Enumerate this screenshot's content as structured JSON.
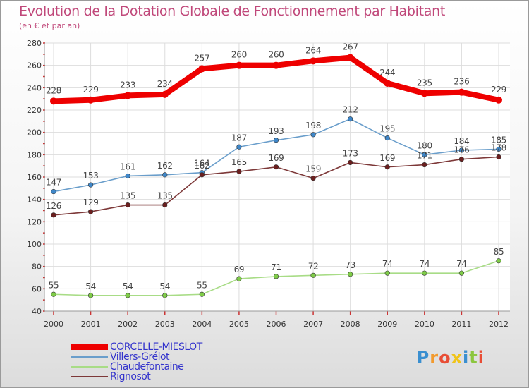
{
  "title": "Evolution de la Dotation Globale de Fonctionnement par Habitant",
  "subtitle": "(en € et par an)",
  "logo": {
    "text": "Proxiti",
    "letters": [
      {
        "ch": "P",
        "color": "#3a8fd0"
      },
      {
        "ch": "r",
        "color": "#f29a2e"
      },
      {
        "ch": "o",
        "color": "#e84d35"
      },
      {
        "ch": "x",
        "color": "#f0c419"
      },
      {
        "ch": "i",
        "color": "#3a8fd0"
      },
      {
        "ch": "t",
        "color": "#8cc63f"
      },
      {
        "ch": "i",
        "color": "#e84d35"
      }
    ]
  },
  "chart_data": {
    "type": "line",
    "title": "Evolution de la Dotation Globale de Fonctionnement par Habitant",
    "subtitle": "(en € et par an)",
    "xlabel": "",
    "ylabel": "",
    "x": [
      2000,
      2001,
      2002,
      2003,
      2004,
      2005,
      2006,
      2007,
      2008,
      2009,
      2010,
      2011,
      2012
    ],
    "ylim": [
      40,
      280
    ],
    "yticks": [
      40,
      60,
      80,
      100,
      120,
      140,
      160,
      180,
      200,
      220,
      240,
      260,
      280
    ],
    "grid": true,
    "legend_position": "bottom-left",
    "series": [
      {
        "name": "CORCELLE-MIESLOT",
        "color": "#ee0000",
        "emphasis": true,
        "values": [
          228,
          229,
          233,
          234,
          257,
          260,
          260,
          264,
          267,
          244,
          235,
          236,
          229
        ]
      },
      {
        "name": "Villers-Grélot",
        "color": "#6a9ecb",
        "marker": "#3f87c9",
        "emphasis": false,
        "values": [
          147,
          153,
          161,
          162,
          164,
          187,
          193,
          198,
          212,
          195,
          180,
          184,
          185
        ]
      },
      {
        "name": "Chaudefontaine",
        "color": "#a8dc86",
        "marker": "#7fcc48",
        "emphasis": false,
        "values": [
          55,
          54,
          54,
          54,
          55,
          69,
          71,
          72,
          73,
          74,
          74,
          74,
          85
        ]
      },
      {
        "name": "Rignosot",
        "color": "#7d3838",
        "marker": "#6b1f1f",
        "emphasis": false,
        "values": [
          126,
          129,
          135,
          135,
          162,
          165,
          169,
          159,
          173,
          169,
          171,
          176,
          178
        ]
      }
    ]
  }
}
